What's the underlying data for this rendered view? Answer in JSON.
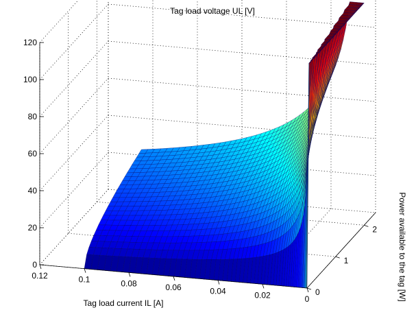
{
  "chart_data": {
    "type": "surface",
    "title": "Tag load voltage UL [V]",
    "xlabel": "Tag load current IL [A]",
    "ylabel": "Power available to the tag [W]",
    "zlabel": "",
    "x_ticks": [
      "0.12",
      "0.1",
      "0.08",
      "0.06",
      "0.04",
      "0.02",
      "0"
    ],
    "x_tick_values": [
      0.12,
      0.1,
      0.08,
      0.06,
      0.04,
      0.02,
      0
    ],
    "y_ticks": [
      "0",
      "1",
      "2"
    ],
    "y_tick_values": [
      0,
      1,
      2
    ],
    "z_ticks": [
      "0",
      "20",
      "40",
      "60",
      "80",
      "100",
      "120"
    ],
    "z_tick_values": [
      0,
      20,
      40,
      60,
      80,
      100,
      120
    ],
    "xlim": [
      0,
      0.12
    ],
    "ylim": [
      0,
      2.4
    ],
    "zlim": [
      0,
      120
    ],
    "z_max": 120,
    "colormap": "jet",
    "grid": true,
    "colors": {
      "low": "#000090",
      "mid": "#00ffff",
      "high": "#c00000"
    }
  }
}
